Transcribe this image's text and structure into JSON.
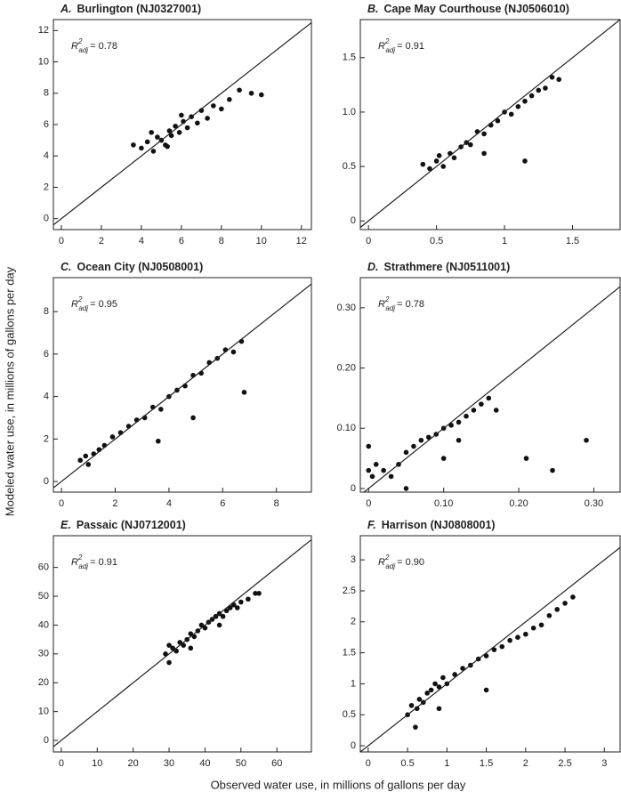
{
  "x_label": "Observed water use, in millions of gallons per day",
  "y_label": "Modeled water use, in millions of gallons per day",
  "chart_data": [
    {
      "type": "scatter",
      "label": "A.",
      "title": "Burlington (NJ0327001)",
      "color": "#111111",
      "annotation": {
        "symbol": "R",
        "sup": "2",
        "sub": "adj",
        "text": "= 0.78"
      },
      "xlim": [
        -0.4,
        12.5
      ],
      "ylim": [
        -0.7,
        12.7
      ],
      "xticks": [
        0,
        2,
        4,
        6,
        8,
        10,
        12
      ],
      "yticks": [
        0,
        2,
        4,
        6,
        8,
        10,
        12
      ],
      "x": [
        4.0,
        4.3,
        4.6,
        4.8,
        5.0,
        5.2,
        5.4,
        5.5,
        5.7,
        5.9,
        6.1,
        6.3,
        6.5,
        6.8,
        7.0,
        7.3,
        7.6,
        8.0,
        8.4,
        8.9,
        9.5,
        10.0,
        3.6,
        4.5,
        5.3,
        6.0
      ],
      "values": [
        4.5,
        4.9,
        4.3,
        5.2,
        5.0,
        4.7,
        5.6,
        5.3,
        5.9,
        5.5,
        6.2,
        5.8,
        6.5,
        6.1,
        6.9,
        6.4,
        7.2,
        7.0,
        7.6,
        8.2,
        8.0,
        7.9,
        4.7,
        5.5,
        4.6,
        6.6
      ]
    },
    {
      "type": "scatter",
      "label": "B.",
      "title": "Cape May Courthouse (NJ0506010)",
      "color": "#111111",
      "annotation": {
        "symbol": "R",
        "sup": "2",
        "sub": "adj",
        "text": "= 0.91"
      },
      "xlim": [
        -0.06,
        1.85
      ],
      "ylim": [
        -0.08,
        1.85
      ],
      "xticks": [
        0,
        0.5,
        1,
        1.5
      ],
      "yticks": [
        0,
        0.5,
        {
          "value": 1,
          "label": "1.0"
        },
        1.5
      ],
      "x": [
        0.4,
        0.45,
        0.5,
        0.52,
        0.55,
        0.6,
        0.63,
        0.68,
        0.72,
        0.75,
        0.8,
        0.85,
        0.9,
        0.95,
        1.0,
        1.05,
        1.1,
        1.15,
        1.2,
        1.25,
        1.3,
        1.35,
        1.4,
        0.85,
        1.15
      ],
      "values": [
        0.52,
        0.48,
        0.55,
        0.6,
        0.5,
        0.62,
        0.58,
        0.68,
        0.72,
        0.7,
        0.82,
        0.8,
        0.88,
        0.92,
        1.0,
        0.98,
        1.05,
        1.1,
        1.15,
        1.2,
        1.22,
        1.32,
        1.3,
        0.62,
        0.55
      ]
    },
    {
      "type": "scatter",
      "label": "C.",
      "title": "Ocean City (NJ0508001)",
      "color": "#111111",
      "annotation": {
        "symbol": "R",
        "sup": "2",
        "sub": "adj",
        "text": "= 0.95"
      },
      "xlim": [
        -0.3,
        9.3
      ],
      "ylim": [
        -0.5,
        9.6
      ],
      "xticks": [
        0,
        2,
        4,
        6,
        8
      ],
      "yticks": [
        0,
        2,
        4,
        6,
        8
      ],
      "x": [
        0.7,
        0.9,
        1.0,
        1.2,
        1.4,
        1.6,
        1.9,
        2.2,
        2.5,
        2.8,
        3.1,
        3.4,
        3.7,
        4.0,
        4.3,
        4.6,
        4.9,
        5.2,
        5.5,
        5.8,
        6.1,
        6.4,
        6.7,
        3.6,
        4.9,
        6.8
      ],
      "values": [
        1.0,
        1.2,
        0.8,
        1.3,
        1.5,
        1.7,
        2.1,
        2.3,
        2.6,
        2.9,
        3.0,
        3.5,
        3.4,
        4.0,
        4.3,
        4.5,
        5.0,
        5.1,
        5.6,
        5.8,
        6.2,
        6.1,
        6.6,
        1.9,
        3.0,
        4.2
      ]
    },
    {
      "type": "scatter",
      "label": "D.",
      "title": "Strathmere (NJ0511001)",
      "color": "#111111",
      "annotation": {
        "symbol": "R",
        "sup": "2",
        "sub": "adj",
        "text": "= 0.78"
      },
      "xlim": [
        -0.011,
        0.335
      ],
      "ylim": [
        -0.006,
        0.35
      ],
      "xticks": [
        0,
        {
          "value": 0.1,
          "label": "0.10"
        },
        {
          "value": 0.2,
          "label": "0.20"
        },
        {
          "value": 0.3,
          "label": "0.30"
        }
      ],
      "yticks": [
        0,
        {
          "value": 0.1,
          "label": "0.10"
        },
        {
          "value": 0.2,
          "label": "0.20"
        },
        {
          "value": 0.3,
          "label": "0.30"
        }
      ],
      "x": [
        0.0,
        0.005,
        0.01,
        0.02,
        0.03,
        0.04,
        0.05,
        0.06,
        0.07,
        0.08,
        0.09,
        0.1,
        0.11,
        0.12,
        0.13,
        0.14,
        0.15,
        0.16,
        0.17,
        0.21,
        0.245,
        0.29,
        0.0,
        0.05,
        0.1,
        0.12
      ],
      "values": [
        0.03,
        0.02,
        0.04,
        0.03,
        0.02,
        0.04,
        0.06,
        0.07,
        0.08,
        0.085,
        0.09,
        0.1,
        0.105,
        0.11,
        0.12,
        0.13,
        0.14,
        0.15,
        0.13,
        0.05,
        0.03,
        0.08,
        0.07,
        0.0,
        0.05,
        0.08
      ]
    },
    {
      "type": "scatter",
      "label": "E.",
      "title": "Passaic (NJ0712001)",
      "color": "#111111",
      "annotation": {
        "symbol": "R",
        "sup": "2",
        "sub": "adj",
        "text": "= 0.91"
      },
      "xlim": [
        -2.2,
        69.6
      ],
      "ylim": [
        -4,
        71
      ],
      "xticks": [
        0,
        10,
        20,
        30,
        40,
        50,
        60
      ],
      "yticks": [
        0,
        10,
        20,
        30,
        40,
        50,
        60
      ],
      "x": [
        29,
        30,
        31,
        32,
        33,
        34,
        35,
        36,
        37,
        38,
        39,
        40,
        41,
        42,
        43,
        44,
        45,
        46,
        47,
        48,
        49,
        50,
        52,
        54,
        55,
        30,
        36,
        44
      ],
      "values": [
        30,
        27,
        32,
        31,
        34,
        33,
        35,
        37,
        36,
        38,
        40,
        39,
        41,
        42,
        43,
        44,
        43,
        45,
        46,
        47,
        46,
        48,
        49,
        51,
        51,
        33,
        32,
        40
      ]
    },
    {
      "type": "scatter",
      "label": "F.",
      "title": "Harrison (NJ0808001)",
      "color": "#111111",
      "annotation": {
        "symbol": "R",
        "sup": "2",
        "sub": "adj",
        "text": "= 0.90"
      },
      "xlim": [
        -0.1,
        3.2
      ],
      "ylim": [
        -0.1,
        3.39
      ],
      "xticks": [
        0,
        0.5,
        1,
        1.5,
        2,
        2.5,
        3
      ],
      "yticks": [
        0,
        0.5,
        1,
        1.5,
        2,
        2.5,
        3
      ],
      "x": [
        0.5,
        0.55,
        0.6,
        0.62,
        0.65,
        0.7,
        0.75,
        0.8,
        0.85,
        0.9,
        0.95,
        1.0,
        1.1,
        1.2,
        1.3,
        1.4,
        1.5,
        1.6,
        1.7,
        1.8,
        1.9,
        2.0,
        2.1,
        2.2,
        2.3,
        2.4,
        2.5,
        2.6,
        0.9,
        1.5
      ],
      "values": [
        0.5,
        0.65,
        0.3,
        0.6,
        0.75,
        0.7,
        0.85,
        0.9,
        1.0,
        0.95,
        1.1,
        1.0,
        1.15,
        1.25,
        1.3,
        1.4,
        1.45,
        1.55,
        1.6,
        1.7,
        1.75,
        1.8,
        1.9,
        1.95,
        2.1,
        2.2,
        2.3,
        2.4,
        0.6,
        0.9
      ]
    }
  ]
}
